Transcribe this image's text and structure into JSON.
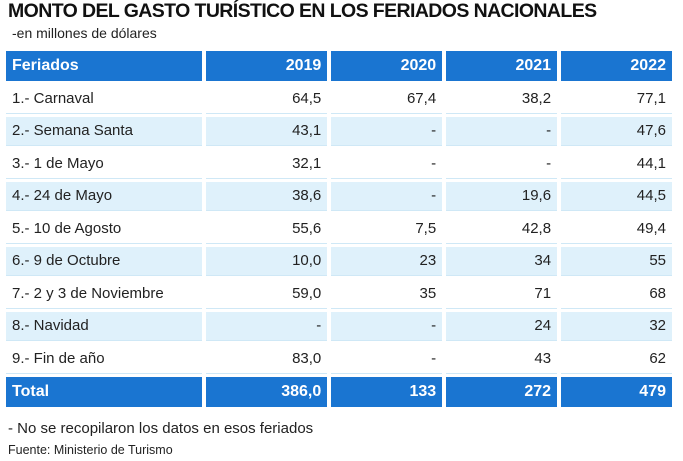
{
  "title": "MONTO DEL GASTO TURÍSTICO EN LOS FERIADOS NACIONALES",
  "subtitle": "-en millones de dólares",
  "colors": {
    "header": "#1a75d1",
    "row_alt": "#dff1fb"
  },
  "chart_data": {
    "type": "table",
    "title": "MONTO DEL GASTO TURÍSTICO EN LOS FERIADOS NACIONALES",
    "subtitle": "-en millones de dólares",
    "columns": [
      "Feriados",
      "2019",
      "2020",
      "2021",
      "2022"
    ],
    "rows": [
      [
        "1.- Carnaval",
        "64,5",
        "67,4",
        "38,2",
        "77,1"
      ],
      [
        "2.- Semana Santa",
        "43,1",
        "-",
        "-",
        "47,6"
      ],
      [
        "3.- 1 de Mayo",
        "32,1",
        "-",
        "-",
        "44,1"
      ],
      [
        "4.- 24 de Mayo",
        "38,6",
        "-",
        "19,6",
        "44,5"
      ],
      [
        "5.- 10 de Agosto",
        "55,6",
        "7,5",
        "42,8",
        "49,4"
      ],
      [
        "6.- 9 de Octubre",
        "10,0",
        "23",
        "34",
        "55"
      ],
      [
        "7.- 2 y 3 de Noviembre",
        "59,0",
        "35",
        "71",
        "68"
      ],
      [
        "8.- Navidad",
        "-",
        "-",
        "24",
        "32"
      ],
      [
        "9.- Fin de año",
        "83,0",
        "-",
        "43",
        "62"
      ]
    ],
    "total": [
      "Total",
      "386,0",
      "133",
      "272",
      "479"
    ]
  },
  "note": "- No se recopilaron los datos en esos feriados",
  "source": "Fuente: Ministerio de Turismo"
}
